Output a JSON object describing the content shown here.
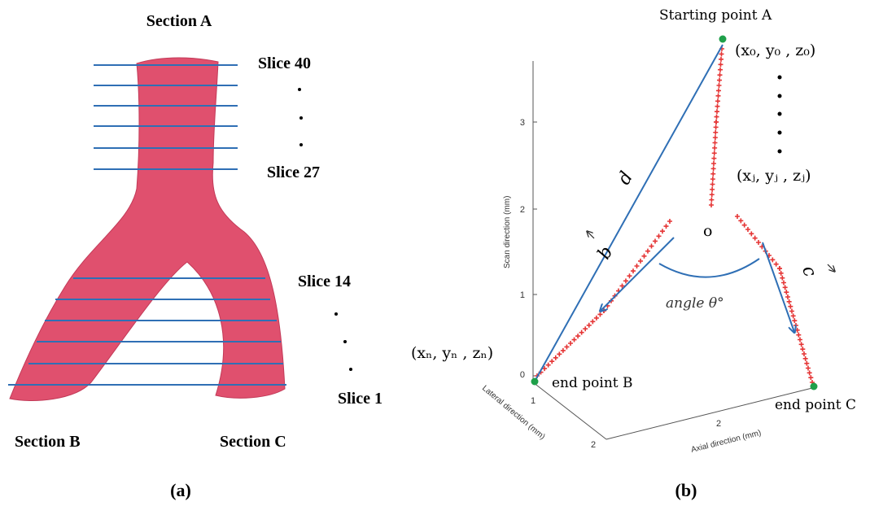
{
  "panel_a": {
    "label": "(a)",
    "section_a": "Section A",
    "section_b": "Section B",
    "section_c": "Section C",
    "slices": [
      "Slice 40",
      "Slice 27",
      "Slice 14",
      "Slice 1"
    ]
  },
  "panel_b": {
    "label": "(b)",
    "start": "Starting point A",
    "start_coord": "(x₀, y₀ , z₀)",
    "mid_coord": "(xⱼ,  yⱼ , zⱼ)",
    "end_coord": "(xₙ, yₙ , zₙ)",
    "end_b": "end point B",
    "end_c": "end point C",
    "line_d": "d",
    "line_b": "b",
    "line_c": "c",
    "origin": "o",
    "angle": "angle θ°",
    "axes": {
      "scan": "Scan direction (mm)",
      "lateral": "Lateral direction (mm)",
      "axial": "Axial direction (mm)",
      "scan_ticks": [
        3,
        2,
        1,
        0
      ],
      "lateral_ticks": [
        1,
        2
      ],
      "axial_ticks": [
        2
      ]
    }
  }
}
